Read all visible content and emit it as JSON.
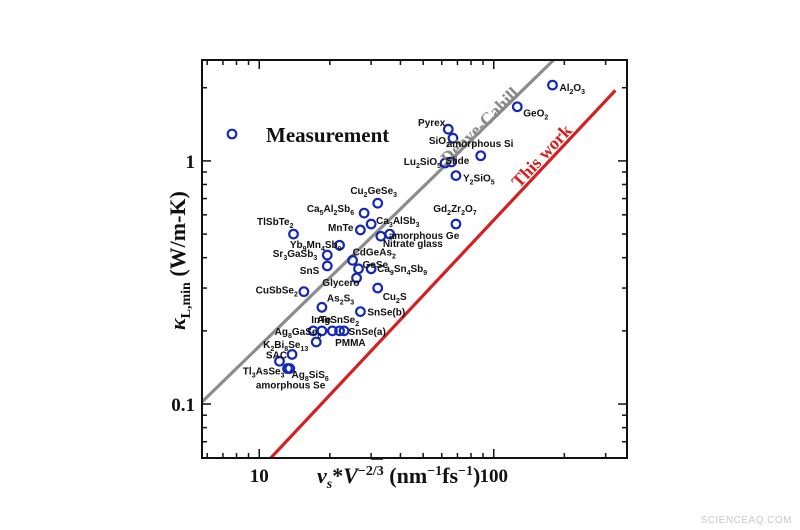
{
  "chart_data": {
    "type": "scatter",
    "xscale": "log",
    "yscale": "log",
    "xlim": [
      5.7,
      370
    ],
    "ylim": [
      0.06,
      2.6
    ],
    "x_ticks": [
      10,
      100
    ],
    "y_ticks": [
      0.1,
      1
    ],
    "x_tick_labels": [
      "10",
      "100"
    ],
    "y_tick_labels": [
      "0.1",
      "1"
    ],
    "xlabel": "vs*V^-2/3 (nm^-1fs^-1)",
    "ylabel": "κL,min (W/m-K)",
    "legend": {
      "label": "Measurement",
      "position": "top-left"
    },
    "lines": [
      {
        "name": "Debye-Cahill",
        "color": "#8c8c8c",
        "points": [
          [
            5.7,
            0.102
          ],
          [
            180,
            2.6
          ]
        ]
      },
      {
        "name": "This work",
        "color": "#d42020",
        "points": [
          [
            11.2,
            0.06
          ],
          [
            330,
            1.95
          ]
        ]
      }
    ],
    "marker_color": "#1428b4",
    "points": [
      {
        "label": "Al2O3",
        "x": 178,
        "y": 2.05
      },
      {
        "label": "GeO2",
        "x": 126,
        "y": 1.67
      },
      {
        "label": "Pyrex",
        "x": 64,
        "y": 1.35
      },
      {
        "label": "SiO2",
        "x": 67,
        "y": 1.24
      },
      {
        "label": "amorphous Si",
        "x": 88,
        "y": 1.05
      },
      {
        "label": "Lu2SiO5",
        "x": 62,
        "y": 0.98
      },
      {
        "label": "Slide",
        "x": 66,
        "y": 0.99
      },
      {
        "label": "Y2SiO5",
        "x": 69,
        "y": 0.87
      },
      {
        "label": "Cu2GeSe3",
        "x": 32,
        "y": 0.67
      },
      {
        "label": "Ca5Al2Sb6",
        "x": 28,
        "y": 0.61
      },
      {
        "label": "Ca3AlSb3",
        "x": 30,
        "y": 0.55
      },
      {
        "label": "TlSbTe2",
        "x": 14,
        "y": 0.5
      },
      {
        "label": "MnTe",
        "x": 27,
        "y": 0.52
      },
      {
        "label": "Gd2Zr2O7",
        "x": 69,
        "y": 0.55
      },
      {
        "label": "amorphous Ge",
        "x": 36,
        "y": 0.5
      },
      {
        "label": "Nitrate glass",
        "x": 33,
        "y": 0.49
      },
      {
        "label": "Yb9Mn4Sb9",
        "x": 22,
        "y": 0.45
      },
      {
        "label": "Sr3GaSb3",
        "x": 19.5,
        "y": 0.41
      },
      {
        "label": "CdGeAs2",
        "x": 25,
        "y": 0.39
      },
      {
        "label": "SnS",
        "x": 19.5,
        "y": 0.37
      },
      {
        "label": "GeSe",
        "x": 26.5,
        "y": 0.36
      },
      {
        "label": "Ca9Sn4Sb9",
        "x": 30,
        "y": 0.36
      },
      {
        "label": "Glycero",
        "x": 26,
        "y": 0.33
      },
      {
        "label": "CuSbSe2",
        "x": 15.5,
        "y": 0.29
      },
      {
        "label": "Cu2S",
        "x": 32,
        "y": 0.3
      },
      {
        "label": "As2S3",
        "x": 18.5,
        "y": 0.25
      },
      {
        "label": "SnSe(b)",
        "x": 27,
        "y": 0.24
      },
      {
        "label": "InTe",
        "x": 17,
        "y": 0.2
      },
      {
        "label": "AgSnSe2",
        "x": 18.5,
        "y": 0.2
      },
      {
        "label": "Ag8GaSe6",
        "x": 20.5,
        "y": 0.2
      },
      {
        "label": "SnSe(a)",
        "x": 22,
        "y": 0.2
      },
      {
        "label": "K2Bi8Se13",
        "x": 17.5,
        "y": 0.18
      },
      {
        "label": "PMMA",
        "x": 23,
        "y": 0.2
      },
      {
        "label": "SAC",
        "x": 13.8,
        "y": 0.16
      },
      {
        "label": "Ag8SiS6",
        "x": 12.2,
        "y": 0.15
      },
      {
        "label": "Tl3AsSe3",
        "x": 13.2,
        "y": 0.14
      },
      {
        "label": "amorphous Se",
        "x": 13.5,
        "y": 0.14
      }
    ]
  },
  "watermark": "SCIENCEAQ.COM"
}
